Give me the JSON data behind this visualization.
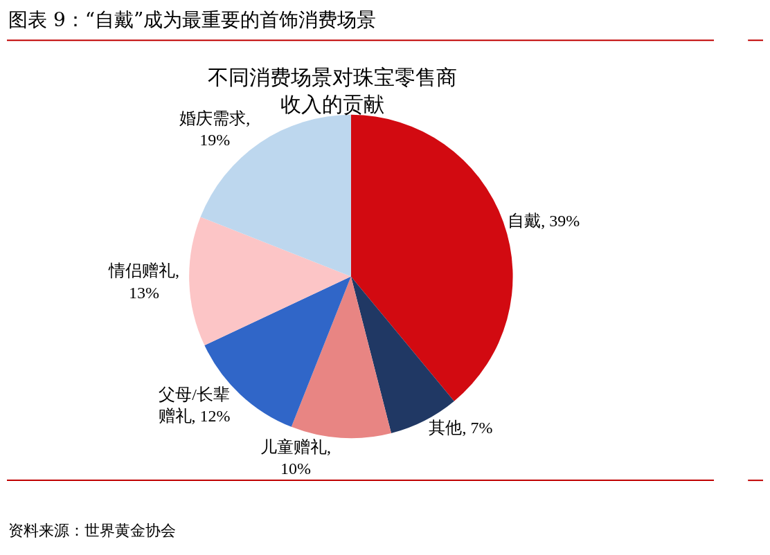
{
  "chart_data": {
    "type": "pie",
    "title": "图表 9：“自戴”成为最重要的首饰消费场景",
    "subtitle": "不同消费场景对珠宝零售商收入的贡献",
    "categories": [
      "自戴",
      "其他",
      "儿童赠礼",
      "父母/长辈赠礼",
      "情侣赠礼",
      "婚庆需求"
    ],
    "values": [
      39,
      7,
      10,
      12,
      13,
      19
    ],
    "colors": [
      "#d20a11",
      "#203864",
      "#e88583",
      "#3066c8",
      "#fcc5c6",
      "#bdd7ee"
    ],
    "value_labels": [
      ", 39%",
      ", 7%",
      ", 10%",
      ", 12%",
      ", 13%",
      ", 19%"
    ],
    "annotations": [
      "资料来源：世界黄金协会"
    ],
    "legend": false
  }
}
